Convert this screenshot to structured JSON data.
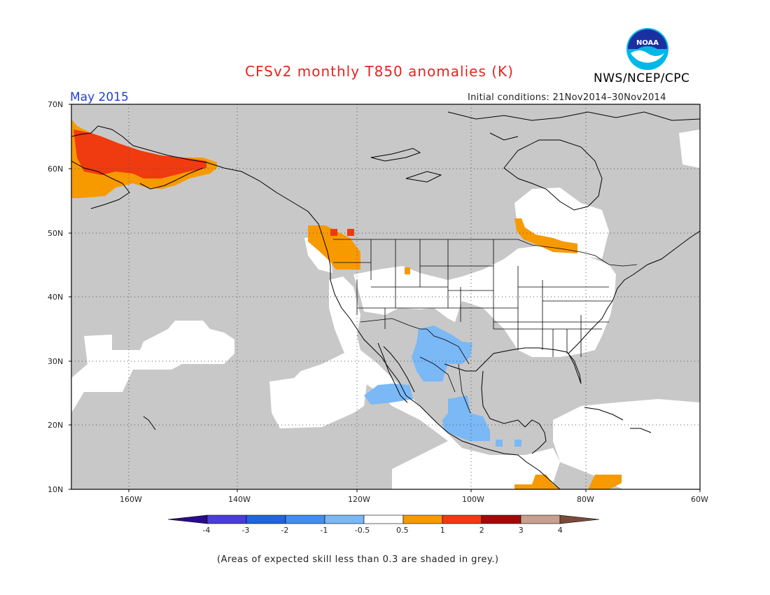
{
  "header": {
    "title": "CFSv2 monthly T850 anomalies (K)",
    "agency": "NWS/NCEP/CPC",
    "logo_text": "NOAA",
    "month": "May 2015",
    "initial_conditions": "Initial conditions: 21Nov2014–30Nov2014"
  },
  "map": {
    "lat_labels": [
      "70N",
      "60N",
      "50N",
      "40N",
      "30N",
      "20N",
      "10N"
    ],
    "lon_labels": [
      "160W",
      "140W",
      "120W",
      "100W",
      "80W",
      "60W"
    ],
    "colors": {
      "ocean_grey": "#c8c8c8",
      "white": "#ffffff",
      "coast": "#000000"
    }
  },
  "colorbar": {
    "labels": [
      "-4",
      "-3",
      "-2",
      "-1",
      "-0.5",
      "0.5",
      "1",
      "2",
      "3",
      "4"
    ],
    "colors": [
      "#2a0a8c",
      "#4a3ed6",
      "#1f66d8",
      "#3f8ef0",
      "#7ab8f6",
      "#ffffff",
      "#f79a00",
      "#f03a10",
      "#a20a0a",
      "#c7a08f",
      "#7a4a3a"
    ]
  },
  "footnote": "(Areas of expected skill less than 0.3 are shaded in grey.)"
}
